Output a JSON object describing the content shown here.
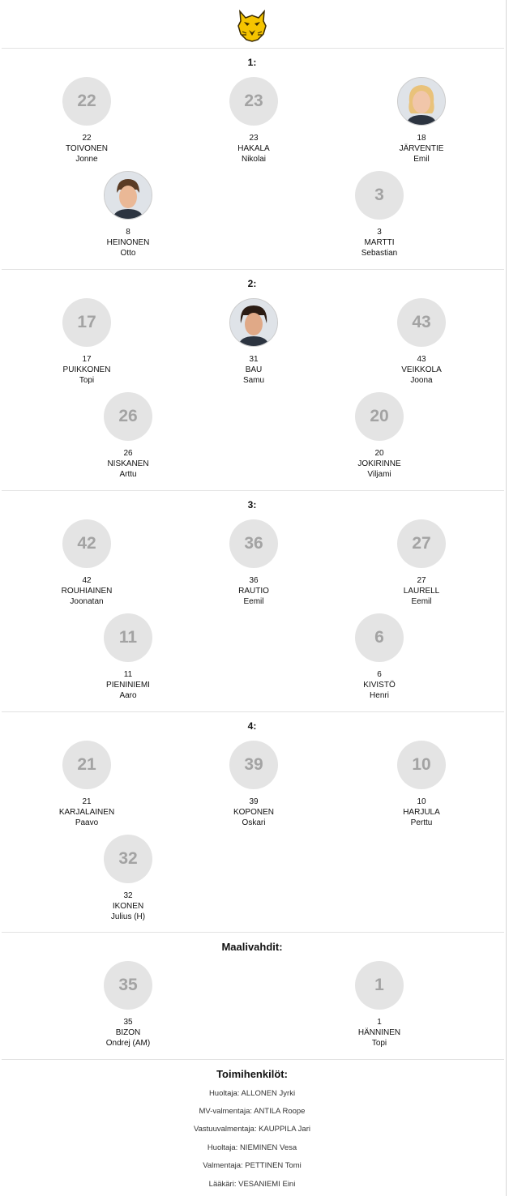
{
  "logo": {
    "icon": "lynx-logo-icon",
    "colors": [
      "#f5c400",
      "#3a2a00"
    ]
  },
  "lines": [
    {
      "title": "1:",
      "players": [
        {
          "number": "22",
          "last": "TOIVONEN",
          "first": "Jonne",
          "avatar": "22",
          "photo": false
        },
        {
          "number": "23",
          "last": "HAKALA",
          "first": "Nikolai",
          "avatar": "23",
          "photo": false
        },
        {
          "number": "18",
          "last": "JÄRVENTIE",
          "first": "Emil",
          "avatar": "",
          "photo": true
        },
        {
          "number": "8",
          "last": "HEINONEN",
          "first": "Otto",
          "avatar": "",
          "photo": true
        },
        {
          "number": "3",
          "last": "MARTTI",
          "first": "Sebastian",
          "avatar": "3",
          "photo": false
        }
      ]
    },
    {
      "title": "2:",
      "players": [
        {
          "number": "17",
          "last": "PUIKKONEN",
          "first": "Topi",
          "avatar": "17",
          "photo": false
        },
        {
          "number": "31",
          "last": "BAU",
          "first": "Samu",
          "avatar": "",
          "photo": true
        },
        {
          "number": "43",
          "last": "VEIKKOLA",
          "first": "Joona",
          "avatar": "43",
          "photo": false
        },
        {
          "number": "26",
          "last": "NISKANEN",
          "first": "Arttu",
          "avatar": "26",
          "photo": false
        },
        {
          "number": "20",
          "last": "JOKIRINNE",
          "first": "Viljami",
          "avatar": "20",
          "photo": false
        }
      ]
    },
    {
      "title": "3:",
      "players": [
        {
          "number": "42",
          "last": "ROUHIAINEN",
          "first": "Joonatan",
          "avatar": "42",
          "photo": false
        },
        {
          "number": "36",
          "last": "RAUTIO",
          "first": "Eemil",
          "avatar": "36",
          "photo": false
        },
        {
          "number": "27",
          "last": "LAURELL",
          "first": "Eemil",
          "avatar": "27",
          "photo": false
        },
        {
          "number": "11",
          "last": "PIENINIEMI",
          "first": "Aaro",
          "avatar": "11",
          "photo": false
        },
        {
          "number": "6",
          "last": "KIVISTÖ",
          "first": "Henri",
          "avatar": "6",
          "photo": false
        }
      ]
    },
    {
      "title": "4:",
      "players": [
        {
          "number": "21",
          "last": "KARJALAINEN",
          "first": "Paavo",
          "avatar": "21",
          "photo": false
        },
        {
          "number": "39",
          "last": "KOPONEN",
          "first": "Oskari",
          "avatar": "39",
          "photo": false
        },
        {
          "number": "10",
          "last": "HARJULA",
          "first": "Perttu",
          "avatar": "10",
          "photo": false
        },
        {
          "number": "32",
          "last": "IKONEN",
          "first": "Julius (H)",
          "avatar": "32",
          "photo": false
        }
      ]
    }
  ],
  "goalies": {
    "title": "Maalivahdit:",
    "players": [
      {
        "number": "35",
        "last": "BIZON",
        "first": "Ondrej (AM)",
        "avatar": "35",
        "photo": false
      },
      {
        "number": "1",
        "last": "HÄNNINEN",
        "first": "Topi",
        "avatar": "1",
        "photo": false
      }
    ]
  },
  "staff": {
    "title": "Toimihenkilöt:",
    "items": [
      "Huoltaja: ALLONEN Jyrki",
      "MV-valmentaja: ANTILA Roope",
      "Vastuuvalmentaja: KAUPPILA Jari",
      "Huoltaja: NIEMINEN Vesa",
      "Valmentaja: PETTINEN Tomi",
      "Lääkäri: VESANIEMI Eini"
    ]
  }
}
